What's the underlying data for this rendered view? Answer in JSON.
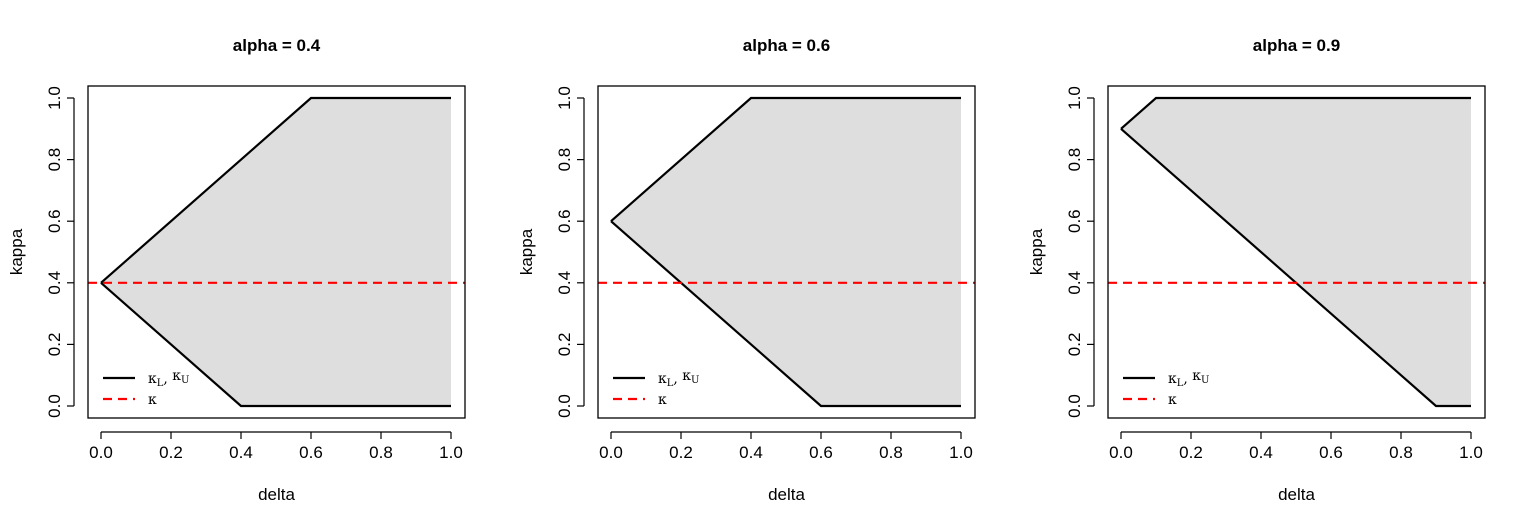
{
  "chart_data": [
    {
      "type": "area",
      "title": "alpha = 0.4",
      "xlabel": "delta",
      "ylabel": "kappa",
      "xlim": [
        0,
        1
      ],
      "ylim": [
        0,
        1
      ],
      "xticks": [
        "0.0",
        "0.2",
        "0.4",
        "0.6",
        "0.8",
        "1.0"
      ],
      "yticks": [
        "0.0",
        "0.2",
        "0.4",
        "0.6",
        "0.8",
        "1.0"
      ],
      "series": [
        {
          "name": "κL",
          "x": [
            0,
            0.4,
            1.0
          ],
          "values": [
            0.4,
            0.0,
            0.0
          ],
          "color": "#000000",
          "style": "solid"
        },
        {
          "name": "κU",
          "x": [
            0,
            0.6,
            1.0
          ],
          "values": [
            0.4,
            1.0,
            1.0
          ],
          "color": "#000000",
          "style": "solid"
        },
        {
          "name": "κ",
          "x": [
            0,
            1
          ],
          "values": [
            0.4,
            0.4
          ],
          "color": "#ff0000",
          "style": "dashed"
        }
      ],
      "fill_color": "#dedede",
      "legend": {
        "position": "bottom-left",
        "entries": [
          {
            "label": "κ",
            "sub1": "L",
            "sep": ", ",
            "label2": "κ",
            "sub2": "U",
            "color": "#000000",
            "style": "solid"
          },
          {
            "label": "κ",
            "color": "#ff0000",
            "style": "dashed"
          }
        ]
      }
    },
    {
      "type": "area",
      "title": "alpha = 0.6",
      "xlabel": "delta",
      "ylabel": "kappa",
      "xlim": [
        0,
        1
      ],
      "ylim": [
        0,
        1
      ],
      "xticks": [
        "0.0",
        "0.2",
        "0.4",
        "0.6",
        "0.8",
        "1.0"
      ],
      "yticks": [
        "0.0",
        "0.2",
        "0.4",
        "0.6",
        "0.8",
        "1.0"
      ],
      "series": [
        {
          "name": "κL",
          "x": [
            0,
            0.6,
            1.0
          ],
          "values": [
            0.6,
            0.0,
            0.0
          ],
          "color": "#000000",
          "style": "solid"
        },
        {
          "name": "κU",
          "x": [
            0,
            0.4,
            1.0
          ],
          "values": [
            0.6,
            1.0,
            1.0
          ],
          "color": "#000000",
          "style": "solid"
        },
        {
          "name": "κ",
          "x": [
            0,
            1
          ],
          "values": [
            0.4,
            0.4
          ],
          "color": "#ff0000",
          "style": "dashed"
        }
      ],
      "fill_color": "#dedede",
      "legend": {
        "position": "bottom-left",
        "entries": [
          {
            "label": "κ",
            "sub1": "L",
            "sep": ", ",
            "label2": "κ",
            "sub2": "U",
            "color": "#000000",
            "style": "solid"
          },
          {
            "label": "κ",
            "color": "#ff0000",
            "style": "dashed"
          }
        ]
      }
    },
    {
      "type": "area",
      "title": "alpha = 0.9",
      "xlabel": "delta",
      "ylabel": "kappa",
      "xlim": [
        0,
        1
      ],
      "ylim": [
        0,
        1
      ],
      "xticks": [
        "0.0",
        "0.2",
        "0.4",
        "0.6",
        "0.8",
        "1.0"
      ],
      "yticks": [
        "0.0",
        "0.2",
        "0.4",
        "0.6",
        "0.8",
        "1.0"
      ],
      "series": [
        {
          "name": "κL",
          "x": [
            0,
            0.9,
            1.0
          ],
          "values": [
            0.9,
            0.0,
            0.0
          ],
          "color": "#000000",
          "style": "solid"
        },
        {
          "name": "κU",
          "x": [
            0,
            0.1,
            1.0
          ],
          "values": [
            0.9,
            1.0,
            1.0
          ],
          "color": "#000000",
          "style": "solid"
        },
        {
          "name": "κ",
          "x": [
            0,
            1
          ],
          "values": [
            0.4,
            0.4
          ],
          "color": "#ff0000",
          "style": "dashed"
        }
      ],
      "fill_color": "#dedede",
      "legend": {
        "position": "bottom-left",
        "entries": [
          {
            "label": "κ",
            "sub1": "L",
            "sep": ", ",
            "label2": "κ",
            "sub2": "U",
            "color": "#000000",
            "style": "solid"
          },
          {
            "label": "κ",
            "color": "#ff0000",
            "style": "dashed"
          }
        ]
      }
    }
  ]
}
